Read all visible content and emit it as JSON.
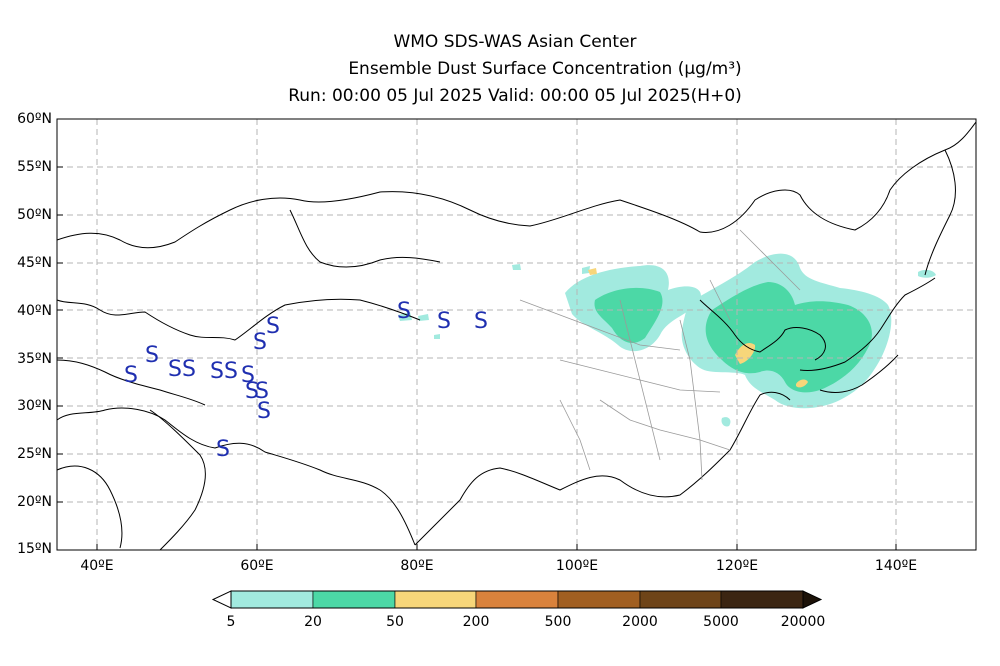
{
  "header": {
    "title": "WMO SDS-WAS Asian Center",
    "subtitle": "Ensemble Dust Surface Concentration (μg/m³)",
    "run_info": "Run: 00:00 05 Jul 2025    Valid: 00:00 05 Jul 2025(H+0)"
  },
  "map": {
    "lat_labels": [
      "60ºN",
      "55ºN",
      "50ºN",
      "45ºN",
      "40ºN",
      "35ºN",
      "30ºN",
      "25ºN",
      "20ºN",
      "15ºN"
    ],
    "lon_labels": [
      "40ºE",
      "60ºE",
      "80ºE",
      "100ºE",
      "120ºE",
      "140ºE"
    ],
    "station_symbol": "S",
    "station_color": "#1f2fb0"
  },
  "colorbar": {
    "labels": [
      "5",
      "20",
      "50",
      "200",
      "500",
      "2000",
      "5000",
      "20000"
    ],
    "colors": [
      "#a2eadf",
      "#4cd8a6",
      "#f7d67a",
      "#d9823c",
      "#a15f21",
      "#6e4418",
      "#3b2512"
    ]
  }
}
